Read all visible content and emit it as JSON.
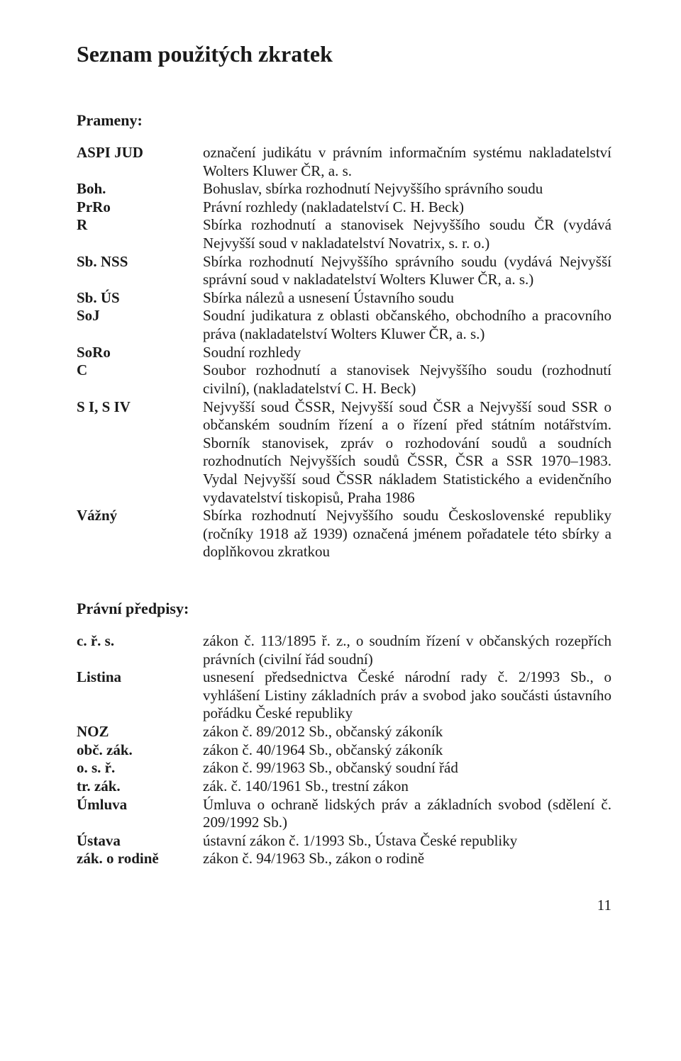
{
  "title": "Seznam použitých zkratek",
  "section1": {
    "heading": "Prameny:",
    "items": [
      {
        "term": "ASPI JUD",
        "desc": "označení judikátu v právním informačním systému nakladatelství Wolters Kluwer ČR, a. s."
      },
      {
        "term": "Boh.",
        "desc": "Bohuslav, sbírka rozhodnutí Nejvyššího správního soudu"
      },
      {
        "term": "PrRo",
        "desc": "Právní rozhledy (nakladatelství C. H. Beck)"
      },
      {
        "term": "R",
        "desc": "Sbírka rozhodnutí a stanovisek Nejvyššího soudu ČR (vydává Nejvyšší soud v nakladatelství Novatrix, s. r. o.)"
      },
      {
        "term": "Sb. NSS",
        "desc": "Sbírka rozhodnutí Nejvyššího správního soudu (vydává Nejvyšší správní soud v nakladatelství Wolters Kluwer ČR, a. s.)"
      },
      {
        "term": "Sb. ÚS",
        "desc": "Sbírka nálezů a usnesení Ústavního soudu"
      },
      {
        "term": "SoJ",
        "desc": "Soudní judikatura z oblasti občanského, obchodního a pracovního práva (nakladatelství Wolters Kluwer ČR, a. s.)"
      },
      {
        "term": "SoRo",
        "desc": "Soudní rozhledy"
      },
      {
        "term": "C",
        "desc": "Soubor rozhodnutí a stanovisek Nejvyššího soudu (rozhodnutí civilní), (nakladatelství C. H. Beck)"
      },
      {
        "term": "S I, S IV",
        "desc": "Nejvyšší soud ČSSR, Nejvyšší soud ČSR a Nejvyšší soud SSR o občanském soudním řízení a o řízení před státním notářstvím. Sborník stanovisek, zpráv o rozhodování soudů a soudních rozhodnutích Nejvyšších soudů ČSSR, ČSR a SSR 1970–1983. Vydal Nejvyšší soud ČSSR nákladem Statistického a evidenčního vydavatelství tiskopisů, Praha 1986"
      },
      {
        "term": "Vážný",
        "desc": "Sbírka rozhodnutí Nejvyššího soudu Československé republiky (ročníky 1918 až 1939) označená jménem pořadatele této sbírky a doplňkovou zkratkou"
      }
    ]
  },
  "section2": {
    "heading": "Právní předpisy:",
    "items": [
      {
        "term": "c. ř. s.",
        "desc": "zákon č. 113/1895 ř. z., o soudním řízení v občanských rozepřích právních (civilní řád soudní)"
      },
      {
        "term": "Listina",
        "desc": "usnesení předsednictva České národní rady č. 2/1993 Sb., o vyhlášení Listiny základních práv a svobod jako součásti ústavního pořádku České republiky"
      },
      {
        "term": "NOZ",
        "desc": "zákon č. 89/2012 Sb., občanský zákoník"
      },
      {
        "term": "obč. zák.",
        "desc": "zákon č. 40/1964 Sb., občanský zákoník"
      },
      {
        "term": "o. s. ř.",
        "desc": "zákon č. 99/1963 Sb., občanský soudní řád"
      },
      {
        "term": "tr. zák.",
        "desc": "zák. č. 140/1961 Sb., trestní zákon"
      },
      {
        "term": "Úmluva",
        "desc": "Úmluva o ochraně lidských práv a základních svobod (sdělení č. 209/1992 Sb.)"
      },
      {
        "term": "Ústava",
        "desc": "ústavní zákon č. 1/1993 Sb., Ústava České republiky"
      },
      {
        "term": "zák. o rodině",
        "desc": "zákon č. 94/1963 Sb., zákon o rodině"
      }
    ]
  },
  "pageNumber": "11"
}
